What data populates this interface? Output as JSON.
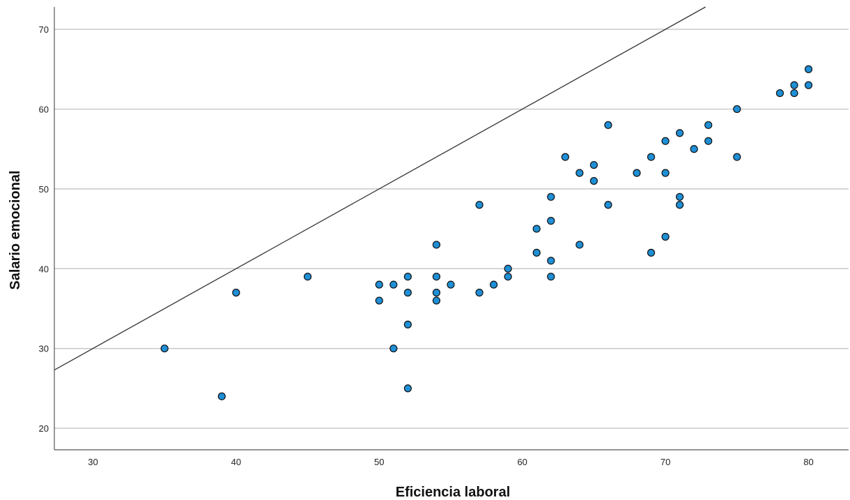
{
  "chart_data": {
    "type": "scatter",
    "title": "",
    "xlabel": "Eficiencia laboral",
    "ylabel": "Salario emocional",
    "xlim": [
      27.3,
      82.8
    ],
    "ylim": [
      17.3,
      72.8
    ],
    "xticks": [
      "30",
      "40",
      "50",
      "60",
      "70",
      "80"
    ],
    "yticks": [
      "20",
      "30",
      "40",
      "50",
      "60",
      "70"
    ],
    "grid": "horizontal",
    "reference_line": {
      "type": "y=x"
    },
    "colors": {
      "marker_fill": "#1f8fd6",
      "marker_edge": "#111111",
      "grid": "#c8c8c8",
      "axis": "#555555",
      "line": "#333333"
    },
    "points": [
      [
        35,
        30
      ],
      [
        39,
        24
      ],
      [
        40,
        37
      ],
      [
        45,
        39
      ],
      [
        50,
        38
      ],
      [
        50,
        36
      ],
      [
        51,
        38
      ],
      [
        51,
        30
      ],
      [
        52,
        39
      ],
      [
        52,
        37
      ],
      [
        52,
        33
      ],
      [
        52,
        25
      ],
      [
        54,
        43
      ],
      [
        54,
        39
      ],
      [
        54,
        37
      ],
      [
        54,
        36
      ],
      [
        55,
        38
      ],
      [
        57,
        48
      ],
      [
        57,
        37
      ],
      [
        58,
        38
      ],
      [
        59,
        40
      ],
      [
        59,
        39
      ],
      [
        61,
        45
      ],
      [
        61,
        42
      ],
      [
        62,
        49
      ],
      [
        62,
        46
      ],
      [
        62,
        41
      ],
      [
        62,
        39
      ],
      [
        63,
        54
      ],
      [
        64,
        52
      ],
      [
        64,
        43
      ],
      [
        65,
        53
      ],
      [
        65,
        51
      ],
      [
        66,
        58
      ],
      [
        66,
        48
      ],
      [
        68,
        52
      ],
      [
        69,
        54
      ],
      [
        69,
        42
      ],
      [
        70,
        56
      ],
      [
        70,
        52
      ],
      [
        70,
        44
      ],
      [
        71,
        57
      ],
      [
        71,
        49
      ],
      [
        71,
        48
      ],
      [
        72,
        55
      ],
      [
        73,
        58
      ],
      [
        73,
        56
      ],
      [
        75,
        60
      ],
      [
        75,
        54
      ],
      [
        78,
        62
      ],
      [
        79,
        63
      ],
      [
        79,
        62
      ],
      [
        80,
        65
      ],
      [
        80,
        63
      ]
    ]
  }
}
